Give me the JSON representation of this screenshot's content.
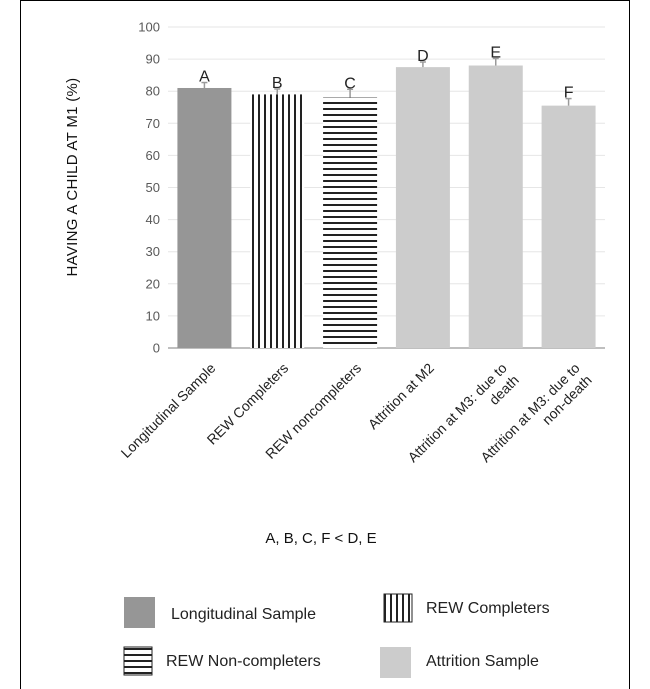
{
  "chart_data": {
    "type": "bar",
    "ylabel": "HAVING A CHILD AT M1 (%)",
    "ylim": [
      0,
      100
    ],
    "yticks": [
      0,
      10,
      20,
      30,
      40,
      50,
      60,
      70,
      80,
      90,
      100
    ],
    "grid": true,
    "categories": [
      "Longitudinal Sample",
      "REW Completers",
      "REW noncompleters",
      "Attrition at M2",
      "Attrition at M3: due to death",
      "Attrition at M3: due to non-death"
    ],
    "category_lines": [
      [
        "Longitudinal Sample"
      ],
      [
        "REW Completers"
      ],
      [
        "REW noncompleters"
      ],
      [
        "Attrition at M2"
      ],
      [
        "Attrition at M3: due to",
        "death"
      ],
      [
        "Attrition at M3: due to",
        "non-death"
      ]
    ],
    "values": [
      81,
      79,
      78,
      87.5,
      88,
      75.5
    ],
    "errors": [
      1.7,
      1.7,
      2.6,
      1.6,
      2.2,
      2.2
    ],
    "bar_letters": [
      "A",
      "B",
      "C",
      "D",
      "E",
      "F"
    ],
    "bar_styles": [
      "solid-dark",
      "vertical-lines",
      "horizontal-lines",
      "solid-light",
      "solid-light",
      "solid-light"
    ],
    "colors": {
      "dark": "#969696",
      "light": "#cccccc",
      "pattern": "#222222",
      "grid": "#e6e6e6",
      "axis": "#bfbfbf",
      "error": "#9a9a9a"
    },
    "annotation": "A, B, C, F < D, E",
    "legend": [
      {
        "label": "Longitudinal Sample",
        "style": "solid-dark"
      },
      {
        "label": "REW Completers",
        "style": "vertical-lines"
      },
      {
        "label": "REW Non-completers",
        "style": "horizontal-lines"
      },
      {
        "label": "Attrition Sample",
        "style": "solid-light"
      }
    ]
  }
}
